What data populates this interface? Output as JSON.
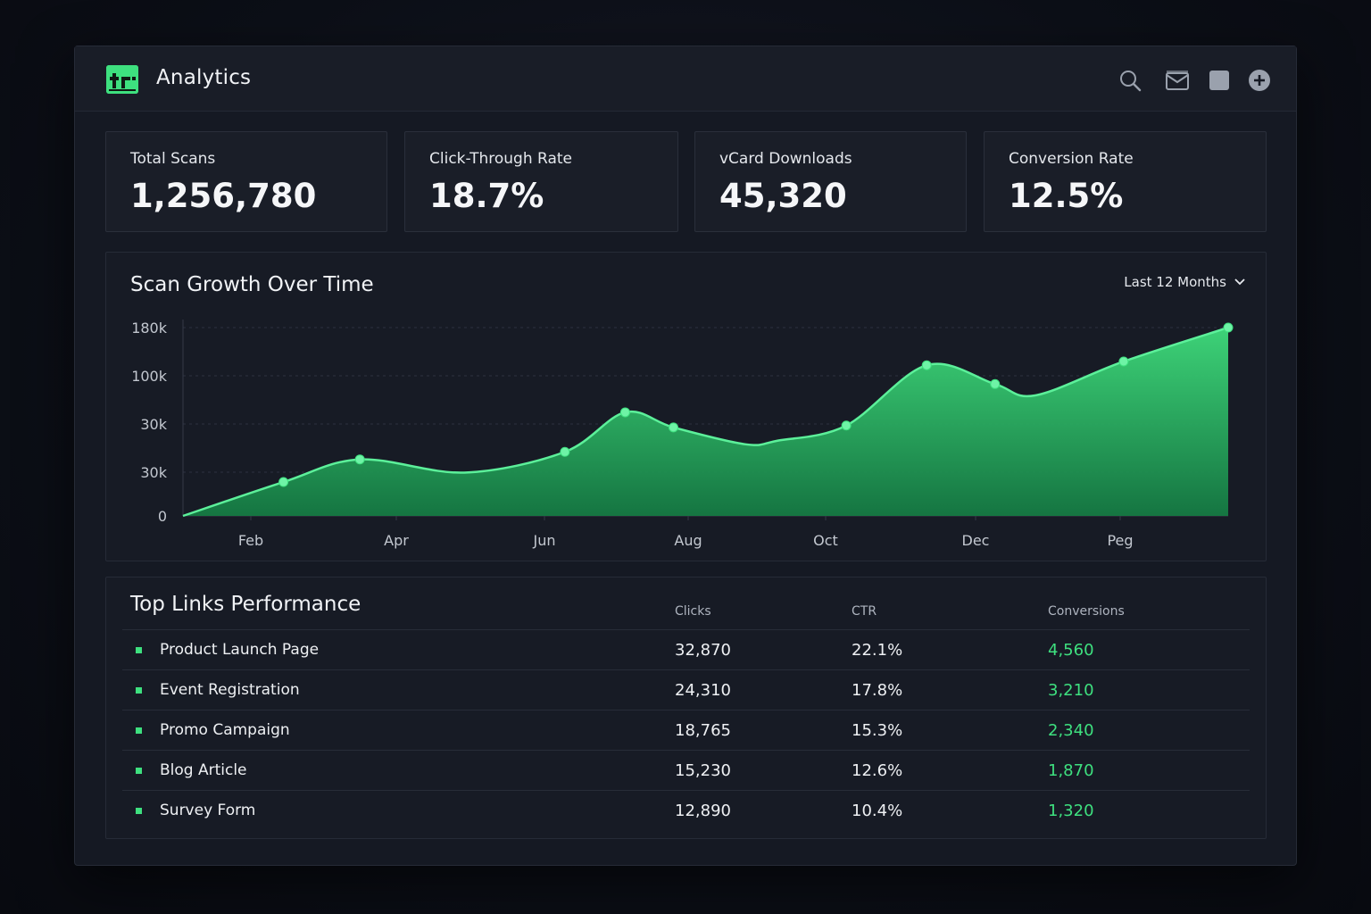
{
  "colors": {
    "accent": "#3ee07f",
    "background": "#0c0f17",
    "panel": "#171b25"
  },
  "header": {
    "title": "Analytics",
    "logo_icon": "qr-logo-icon",
    "icons": [
      "search-icon",
      "mail-icon",
      "square-icon",
      "add-circle-icon"
    ]
  },
  "stats": [
    {
      "label": "Total Scans",
      "value": "1,256,780"
    },
    {
      "label": "Click-Through Rate",
      "value": "18.7%"
    },
    {
      "label": "vCard Downloads",
      "value": "45,320"
    },
    {
      "label": "Conversion Rate",
      "value": "12.5%"
    }
  ],
  "chart_panel": {
    "title": "Scan Growth Over Time",
    "range_label": "Last 12 Months"
  },
  "chart_data": {
    "type": "area",
    "title": "Scan Growth Over Time",
    "xlabel": "",
    "ylabel": "",
    "y_tick_labels": [
      "0",
      "30k",
      "30k",
      "100k",
      "180k"
    ],
    "x_tick_labels": [
      "Feb",
      "Apr",
      "Jun",
      "Aug",
      "Oct",
      "Dec",
      "Peg"
    ],
    "grid": true,
    "series": [
      {
        "points": [
          {
            "x": 0.0,
            "y": 0
          },
          {
            "x": 1.25,
            "y": 18
          },
          {
            "x": 2.2,
            "y": 30
          },
          {
            "x": 3.5,
            "y": 23
          },
          {
            "x": 4.75,
            "y": 34
          },
          {
            "x": 5.5,
            "y": 55
          },
          {
            "x": 6.1,
            "y": 47
          },
          {
            "x": 7.0,
            "y": 38
          },
          {
            "x": 7.4,
            "y": 40
          },
          {
            "x": 8.25,
            "y": 48
          },
          {
            "x": 9.25,
            "y": 80
          },
          {
            "x": 10.1,
            "y": 70
          },
          {
            "x": 10.6,
            "y": 64
          },
          {
            "x": 11.7,
            "y": 82
          },
          {
            "x": 13.0,
            "y": 100
          }
        ],
        "markers": [
          1.25,
          2.2,
          4.75,
          5.5,
          6.1,
          8.25,
          9.25,
          10.1,
          11.7,
          13.0
        ]
      }
    ]
  },
  "table": {
    "title": "Top Links Performance",
    "columns": [
      "Clicks",
      "CTR",
      "Conversions"
    ],
    "rows": [
      {
        "name": "Product Launch Page",
        "clicks": "32,870",
        "ctr": "22.1%",
        "conversions": "4,560"
      },
      {
        "name": "Event Registration",
        "clicks": "24,310",
        "ctr": "17.8%",
        "conversions": "3,210"
      },
      {
        "name": "Promo Campaign",
        "clicks": "18,765",
        "ctr": "15.3%",
        "conversions": "2,340"
      },
      {
        "name": "Blog Article",
        "clicks": "15,230",
        "ctr": "12.6%",
        "conversions": "1,870"
      },
      {
        "name": "Survey Form",
        "clicks": "12,890",
        "ctr": "10.4%",
        "conversions": "1,320"
      }
    ]
  }
}
